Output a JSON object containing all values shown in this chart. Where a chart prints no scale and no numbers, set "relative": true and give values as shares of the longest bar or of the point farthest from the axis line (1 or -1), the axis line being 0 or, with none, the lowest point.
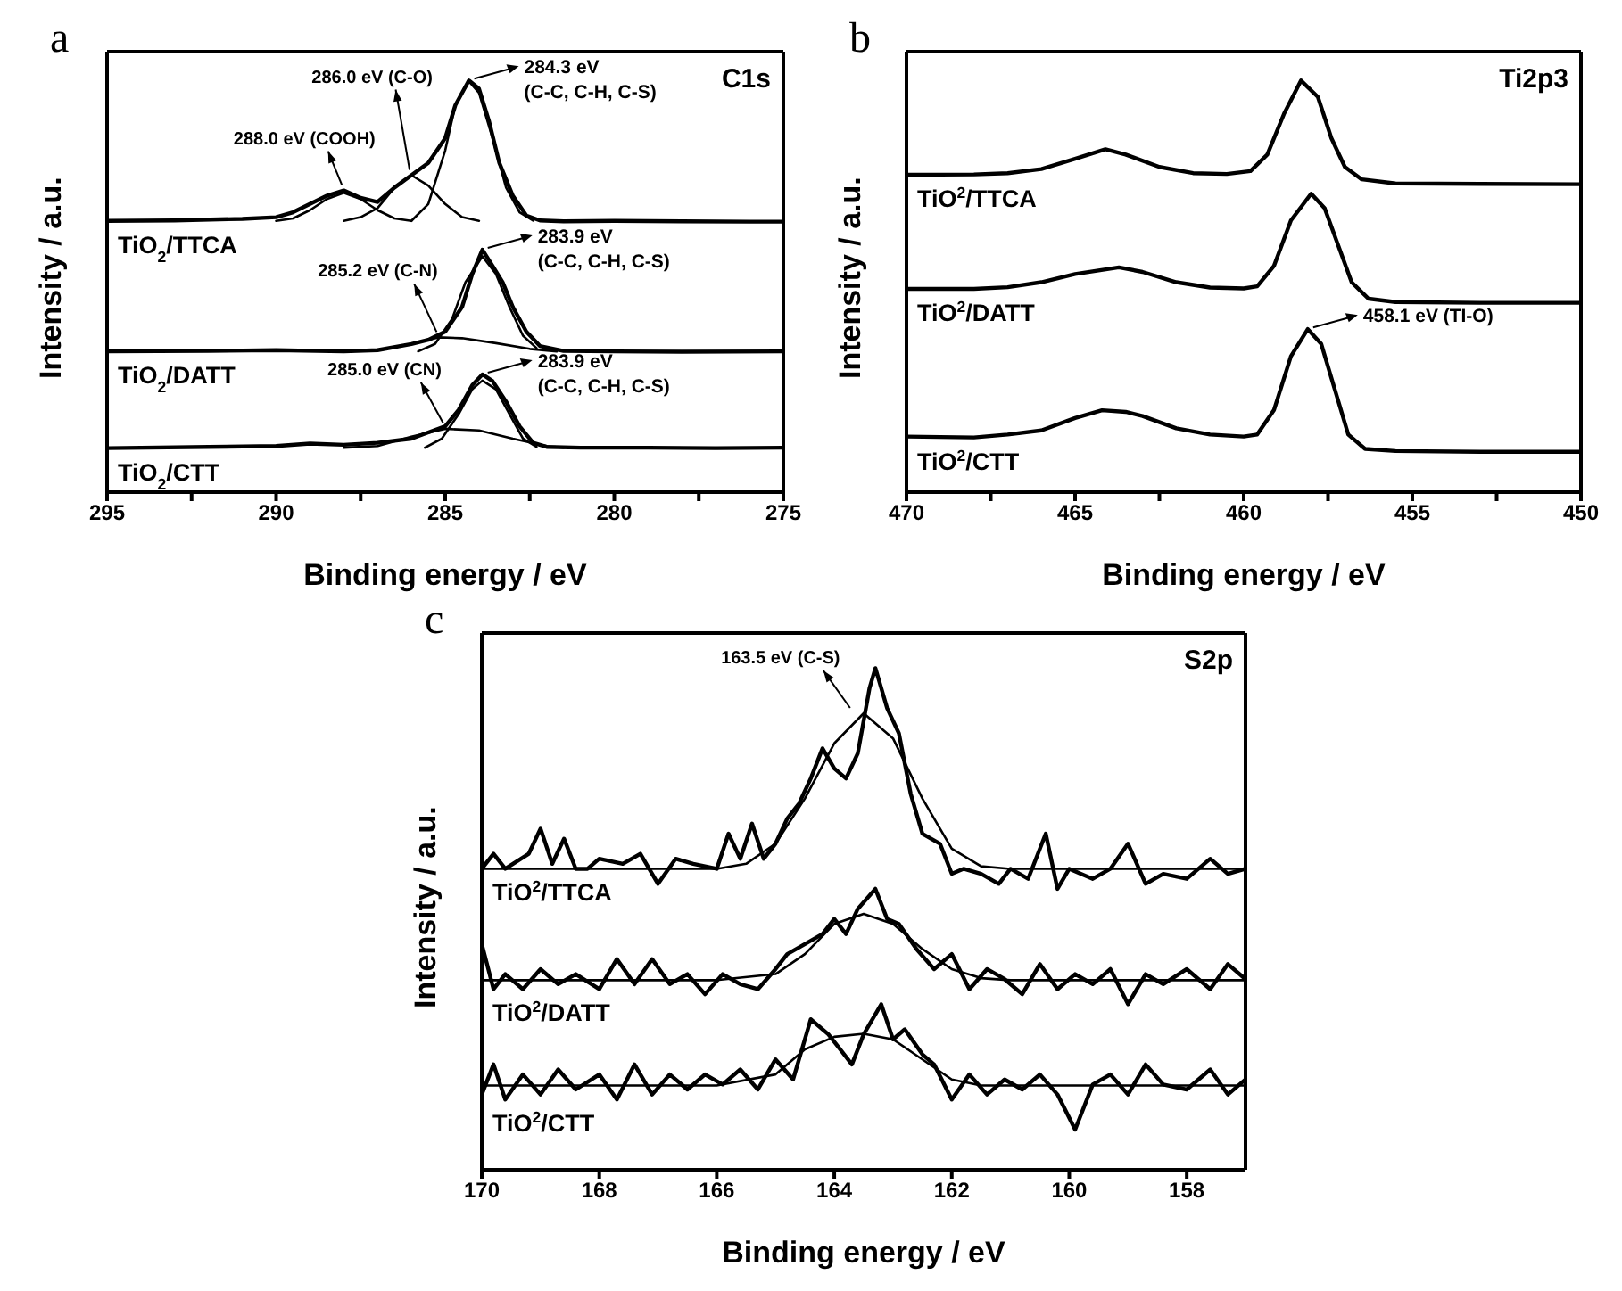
{
  "chart_data": [
    {
      "type": "line",
      "title": "a",
      "xlabel": "Binding energy / eV",
      "ylabel": "Intensity / a.u.",
      "relative": true,
      "xlim": [
        295,
        275
      ],
      "xticks": [
        295,
        {
          "value": 292.5,
          "label": null
        },
        290,
        {
          "value": 287.5,
          "label": null
        },
        285,
        {
          "value": 282.5,
          "label": null
        },
        280,
        {
          "value": 277.5,
          "label": null
        },
        275
      ],
      "annotations": [
        "C1s",
        {
          "text": "288.0 eV (COOH)",
          "x": 288,
          "y": 0.733
        },
        {
          "text": "286.0 eV (C-O)",
          "x": 286,
          "y": 0.77
        },
        {
          "text": "284.3 eV\n(C-C, C-H, C-S)",
          "x": 284.3,
          "y": 1.0
        },
        {
          "text": "285.2 eV (C-N)",
          "x": 285.2,
          "y": 0.376
        },
        {
          "text": "283.9 eV\n(C-C, C-H, C-S)",
          "x": 283.9,
          "y": 0.589
        },
        {
          "text": "285.0 eV (CN)",
          "x": 285.0,
          "y": 0.154
        },
        {
          "text": "283.9 eV\n(C-C, C-H, C-S)",
          "x": 283.9,
          "y": 0.286
        }
      ],
      "series": [
        {
          "name": "TiO$_{2}$/TTCA",
          "color": "#000000",
          "x": [
            295,
            293,
            291,
            290,
            289.5,
            289,
            288.5,
            288,
            287.5,
            287,
            286.5,
            286,
            285.5,
            285,
            284.7,
            284.3,
            284,
            283.7,
            283.4,
            283,
            282.6,
            282.2,
            281.5,
            280,
            278,
            276,
            275
          ],
          "values": [
            0.659,
            0.66,
            0.664,
            0.668,
            0.68,
            0.7,
            0.72,
            0.733,
            0.715,
            0.705,
            0.74,
            0.77,
            0.8,
            0.86,
            0.94,
            1.0,
            0.98,
            0.9,
            0.8,
            0.72,
            0.672,
            0.66,
            0.658,
            0.659,
            0.658,
            0.657,
            0.657
          ]
        },
        {
          "color": "#000000",
          "x": [
            290,
            289.5,
            289,
            288.5,
            288,
            287.5,
            287,
            286.5,
            286
          ],
          "values": [
            0.659,
            0.665,
            0.685,
            0.712,
            0.727,
            0.712,
            0.685,
            0.665,
            0.659
          ]
        },
        {
          "color": "#000000",
          "x": [
            288,
            287.5,
            287,
            286.5,
            286,
            285.5,
            285,
            284.5,
            284
          ],
          "values": [
            0.659,
            0.668,
            0.69,
            0.74,
            0.77,
            0.745,
            0.7,
            0.668,
            0.659
          ]
        },
        {
          "color": "#000000",
          "x": [
            286,
            285.5,
            285,
            284.7,
            284.3,
            284,
            283.6,
            283.2,
            282.8,
            282.4
          ],
          "values": [
            0.659,
            0.7,
            0.83,
            0.94,
            0.998,
            0.97,
            0.86,
            0.74,
            0.68,
            0.66
          ]
        },
        {
          "name": "TiO$_{2}$/DATT",
          "color": "#000000",
          "x": [
            295,
            292,
            290,
            288,
            287,
            286,
            285.5,
            285,
            284.5,
            284.2,
            283.9,
            283.6,
            283.3,
            283,
            282.6,
            282.2,
            281.5,
            280,
            278,
            275
          ],
          "values": [
            0.342,
            0.343,
            0.345,
            0.342,
            0.345,
            0.36,
            0.37,
            0.39,
            0.45,
            0.53,
            0.589,
            0.55,
            0.51,
            0.45,
            0.39,
            0.355,
            0.343,
            0.342,
            0.341,
            0.342
          ]
        },
        {
          "color": "#000000",
          "x": [
            288,
            287,
            286,
            285.2,
            284.5,
            283.5,
            282.5,
            281.7
          ],
          "values": [
            0.342,
            0.345,
            0.36,
            0.376,
            0.374,
            0.362,
            0.348,
            0.342
          ]
        },
        {
          "color": "#000000",
          "x": [
            285.8,
            285.3,
            284.8,
            284.4,
            283.9,
            283.5,
            283.1,
            282.7,
            282.3
          ],
          "values": [
            0.342,
            0.36,
            0.42,
            0.51,
            0.573,
            0.53,
            0.45,
            0.38,
            0.35
          ]
        },
        {
          "name": "TiO$_{2}$/CTT",
          "color": "#000000",
          "x": [
            295,
            292,
            290,
            289,
            288,
            287,
            286,
            285.5,
            285,
            284.6,
            284.2,
            283.9,
            283.6,
            283.2,
            282.8,
            282.4,
            282,
            281,
            279,
            277,
            275
          ],
          "values": [
            0.107,
            0.11,
            0.112,
            0.118,
            0.115,
            0.12,
            0.13,
            0.145,
            0.16,
            0.2,
            0.26,
            0.286,
            0.27,
            0.22,
            0.16,
            0.12,
            0.11,
            0.108,
            0.108,
            0.107,
            0.108
          ]
        },
        {
          "color": "#000000",
          "x": [
            288,
            287,
            286,
            285,
            284,
            283,
            282,
            281.5
          ],
          "values": [
            0.108,
            0.112,
            0.135,
            0.154,
            0.15,
            0.13,
            0.112,
            0.108
          ]
        },
        {
          "color": "#000000",
          "x": [
            285.6,
            285.1,
            284.6,
            284.2,
            283.9,
            283.5,
            283.1,
            282.7,
            282.3
          ],
          "values": [
            0.108,
            0.13,
            0.19,
            0.25,
            0.271,
            0.25,
            0.19,
            0.13,
            0.11
          ]
        }
      ]
    },
    {
      "type": "line",
      "title": "b",
      "xlabel": "Binding energy / eV",
      "ylabel": "Intensity / a.u.",
      "relative": true,
      "xlim": [
        470,
        450
      ],
      "xticks": [
        470,
        {
          "value": 467.5,
          "label": null
        },
        465,
        {
          "value": 462.5,
          "label": null
        },
        460,
        {
          "value": 457.5,
          "label": null
        },
        455,
        {
          "value": 452.5,
          "label": null
        },
        450
      ],
      "annotations": [
        "Ti2p3",
        {
          "text": "458.1 eV (TI-O)",
          "x": 458.1,
          "y": 0.396
        }
      ],
      "series": [
        {
          "name": "TiO$^{2}$/TTCA",
          "color": "#000000",
          "x": [
            470,
            468,
            467,
            466,
            465,
            464.1,
            463.5,
            462.5,
            461.5,
            460.5,
            459.8,
            459.3,
            458.8,
            458.3,
            457.8,
            457.4,
            457,
            456.5,
            455.5,
            453,
            450
          ],
          "values": [
            0.771,
            0.772,
            0.775,
            0.785,
            0.81,
            0.833,
            0.82,
            0.79,
            0.775,
            0.773,
            0.78,
            0.82,
            0.92,
            1.0,
            0.96,
            0.86,
            0.79,
            0.76,
            0.75,
            0.749,
            0.748
          ]
        },
        {
          "name": "TiO$^{2}$/DATT",
          "color": "#000000",
          "x": [
            470,
            468,
            467,
            466,
            465,
            463.7,
            463,
            462,
            461,
            460,
            459.6,
            459.1,
            458.6,
            458,
            457.6,
            457.2,
            456.8,
            456.3,
            455.5,
            453,
            450
          ],
          "values": [
            0.494,
            0.494,
            0.498,
            0.51,
            0.53,
            0.546,
            0.535,
            0.51,
            0.497,
            0.495,
            0.5,
            0.55,
            0.66,
            0.725,
            0.69,
            0.6,
            0.51,
            0.47,
            0.462,
            0.46,
            0.46
          ]
        },
        {
          "name": "TiO$^{2}$/CTT",
          "color": "#000000",
          "x": [
            470,
            468,
            467,
            466,
            465,
            464.2,
            463.5,
            463,
            462,
            461,
            460,
            459.6,
            459.1,
            458.6,
            458.1,
            457.7,
            457.3,
            456.9,
            456.4,
            455.5,
            453,
            450
          ],
          "values": [
            0.135,
            0.133,
            0.14,
            0.15,
            0.18,
            0.199,
            0.195,
            0.185,
            0.155,
            0.14,
            0.135,
            0.14,
            0.2,
            0.33,
            0.396,
            0.36,
            0.25,
            0.14,
            0.105,
            0.1,
            0.098,
            0.098
          ]
        }
      ]
    },
    {
      "type": "line",
      "title": "c",
      "xlabel": "Binding energy / eV",
      "ylabel": "Intensity / a.u.",
      "relative": true,
      "xlim": [
        170,
        157
      ],
      "xticks": [
        170,
        168,
        166,
        164,
        162,
        160,
        158
      ],
      "annotations": [
        "S2p",
        {
          "text": "163.5 eV (C-S)",
          "x": 163.7,
          "y": 0.91
        }
      ],
      "series": [
        {
          "name": "TiO$^{2}$/TTCA",
          "color": "#000000",
          "x": [
            170,
            169.8,
            169.6,
            169.2,
            169,
            168.8,
            168.6,
            168.4,
            168.2,
            168,
            167.6,
            167.3,
            167,
            166.7,
            166.4,
            166,
            165.8,
            165.6,
            165.4,
            165.2,
            165,
            164.8,
            164.6,
            164.4,
            164.2,
            164,
            163.8,
            163.6,
            163.4,
            163.3,
            163.1,
            162.9,
            162.7,
            162.5,
            162.2,
            162,
            161.8,
            161.5,
            161.2,
            161,
            160.7,
            160.4,
            160.2,
            160,
            159.6,
            159.3,
            159,
            158.7,
            158.4,
            158,
            157.6,
            157.3,
            157
          ],
          "values": [
            0.6,
            0.63,
            0.6,
            0.63,
            0.68,
            0.61,
            0.66,
            0.6,
            0.6,
            0.62,
            0.61,
            0.63,
            0.57,
            0.62,
            0.61,
            0.6,
            0.67,
            0.62,
            0.69,
            0.62,
            0.65,
            0.7,
            0.73,
            0.78,
            0.84,
            0.8,
            0.78,
            0.83,
            0.96,
            1.0,
            0.92,
            0.87,
            0.75,
            0.67,
            0.65,
            0.59,
            0.6,
            0.59,
            0.57,
            0.6,
            0.58,
            0.67,
            0.56,
            0.6,
            0.58,
            0.6,
            0.65,
            0.57,
            0.59,
            0.58,
            0.62,
            0.59,
            0.6
          ]
        },
        {
          "color": "#000000",
          "x": [
            170,
            166,
            165.5,
            165,
            164.5,
            164,
            163.5,
            163,
            162.5,
            162,
            161.5,
            161,
            157
          ],
          "values": [
            0.6,
            0.6,
            0.61,
            0.65,
            0.74,
            0.85,
            0.91,
            0.86,
            0.74,
            0.64,
            0.605,
            0.6,
            0.6
          ]
        },
        {
          "name": "TiO$^{2}$/DATT",
          "color": "#000000",
          "x": [
            170,
            169.8,
            169.6,
            169.3,
            169,
            168.7,
            168.4,
            168,
            167.7,
            167.4,
            167.1,
            166.8,
            166.5,
            166.2,
            165.9,
            165.6,
            165.3,
            165,
            164.8,
            164.5,
            164.2,
            164,
            163.8,
            163.6,
            163.3,
            163.1,
            162.9,
            162.6,
            162.3,
            162,
            161.7,
            161.4,
            161.1,
            160.8,
            160.5,
            160.2,
            159.9,
            159.6,
            159.3,
            159,
            158.7,
            158.4,
            158,
            157.6,
            157.3,
            157
          ],
          "values": [
            0.45,
            0.36,
            0.39,
            0.36,
            0.4,
            0.37,
            0.39,
            0.36,
            0.42,
            0.37,
            0.42,
            0.37,
            0.39,
            0.35,
            0.39,
            0.37,
            0.36,
            0.4,
            0.43,
            0.45,
            0.47,
            0.5,
            0.47,
            0.52,
            0.56,
            0.5,
            0.49,
            0.44,
            0.4,
            0.43,
            0.36,
            0.4,
            0.38,
            0.35,
            0.41,
            0.36,
            0.39,
            0.37,
            0.4,
            0.33,
            0.39,
            0.37,
            0.4,
            0.36,
            0.41,
            0.38
          ]
        },
        {
          "color": "#000000",
          "x": [
            170,
            166,
            165,
            164.5,
            164,
            163.5,
            163,
            162.5,
            162,
            161.5,
            161,
            157
          ],
          "values": [
            0.378,
            0.378,
            0.39,
            0.43,
            0.49,
            0.51,
            0.49,
            0.44,
            0.4,
            0.382,
            0.378,
            0.378
          ]
        },
        {
          "name": "TiO$^{2}$/CTT",
          "color": "#000000",
          "x": [
            170,
            169.8,
            169.6,
            169.3,
            169,
            168.7,
            168.4,
            168,
            167.7,
            167.4,
            167.1,
            166.8,
            166.5,
            166.2,
            165.9,
            165.6,
            165.3,
            165,
            164.7,
            164.4,
            164.1,
            163.9,
            163.7,
            163.5,
            163.2,
            163,
            162.8,
            162.5,
            162.3,
            162,
            161.7,
            161.4,
            161.1,
            160.8,
            160.5,
            160.2,
            159.9,
            159.6,
            159.3,
            159,
            158.7,
            158.4,
            158,
            157.6,
            157.3,
            157
          ],
          "values": [
            0.15,
            0.21,
            0.14,
            0.19,
            0.15,
            0.2,
            0.16,
            0.19,
            0.14,
            0.21,
            0.15,
            0.19,
            0.16,
            0.19,
            0.17,
            0.2,
            0.16,
            0.22,
            0.18,
            0.3,
            0.27,
            0.24,
            0.21,
            0.27,
            0.33,
            0.26,
            0.28,
            0.23,
            0.21,
            0.14,
            0.19,
            0.15,
            0.18,
            0.16,
            0.19,
            0.15,
            0.08,
            0.17,
            0.19,
            0.15,
            0.21,
            0.17,
            0.16,
            0.2,
            0.15,
            0.18
          ]
        },
        {
          "color": "#000000",
          "x": [
            170,
            166,
            165,
            164.5,
            164,
            163.5,
            163,
            162.5,
            162,
            161.5,
            157
          ],
          "values": [
            0.168,
            0.168,
            0.19,
            0.24,
            0.265,
            0.271,
            0.26,
            0.22,
            0.18,
            0.168,
            0.168
          ]
        }
      ]
    }
  ]
}
